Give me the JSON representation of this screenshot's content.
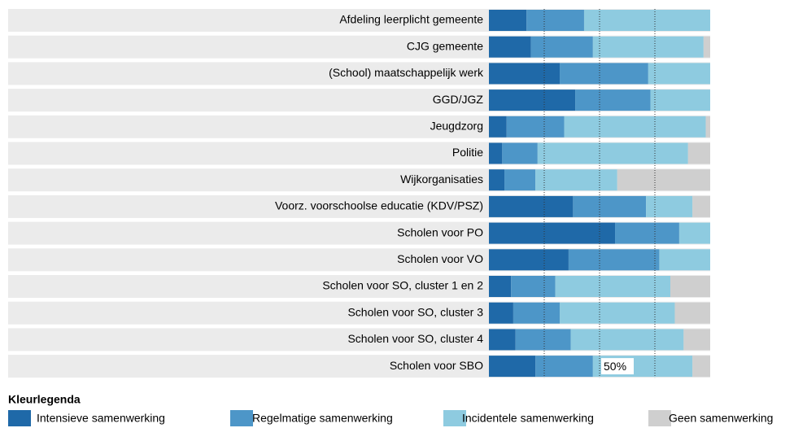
{
  "chart_data": {
    "type": "stacked-bar-horizontal",
    "categories": [
      "Afdeling leerplicht gemeente",
      "CJG gemeente",
      "(School) maatschappelijk werk",
      "GGD/JGZ",
      "Jeugdzorg",
      "Politie",
      "Wijkorganisaties",
      "Voorz. voorschoolse educatie (KDV/PSZ)",
      "Scholen voor PO",
      "Scholen voor VO",
      "Scholen voor SO, cluster 1 en 2",
      "Scholen voor SO, cluster 3",
      "Scholen voor SO, cluster 4",
      "Scholen voor SBO"
    ],
    "series": [
      {
        "name": "Intensieve samenwerking",
        "color": "#1f69a8",
        "values": [
          17,
          19,
          32,
          39,
          8,
          6,
          7,
          38,
          57,
          36,
          10,
          11,
          12,
          21
        ]
      },
      {
        "name": "Regelmatige samenwerking",
        "color": "#4d96c8",
        "values": [
          26,
          28,
          40,
          34,
          26,
          16,
          14,
          33,
          29,
          41,
          20,
          21,
          25,
          26
        ]
      },
      {
        "name": "Incidentele samenwerking",
        "color": "#8ecbe0",
        "values": [
          57,
          50,
          28,
          27,
          64,
          68,
          37,
          21,
          14,
          23,
          52,
          52,
          51,
          45
        ]
      },
      {
        "name": "Geen samenwerking",
        "color": "#cfcfcf",
        "values": [
          0,
          3,
          0,
          0,
          2,
          10,
          42,
          8,
          0,
          0,
          18,
          16,
          12,
          8
        ]
      }
    ],
    "xlim": [
      0,
      100
    ],
    "xticks": [
      {
        "value": 25,
        "label": null
      },
      {
        "value": 50,
        "label": "50%"
      },
      {
        "value": 75,
        "label": null
      }
    ],
    "grid": true,
    "legend_title": "Kleurlegenda",
    "legend": "bottom"
  }
}
